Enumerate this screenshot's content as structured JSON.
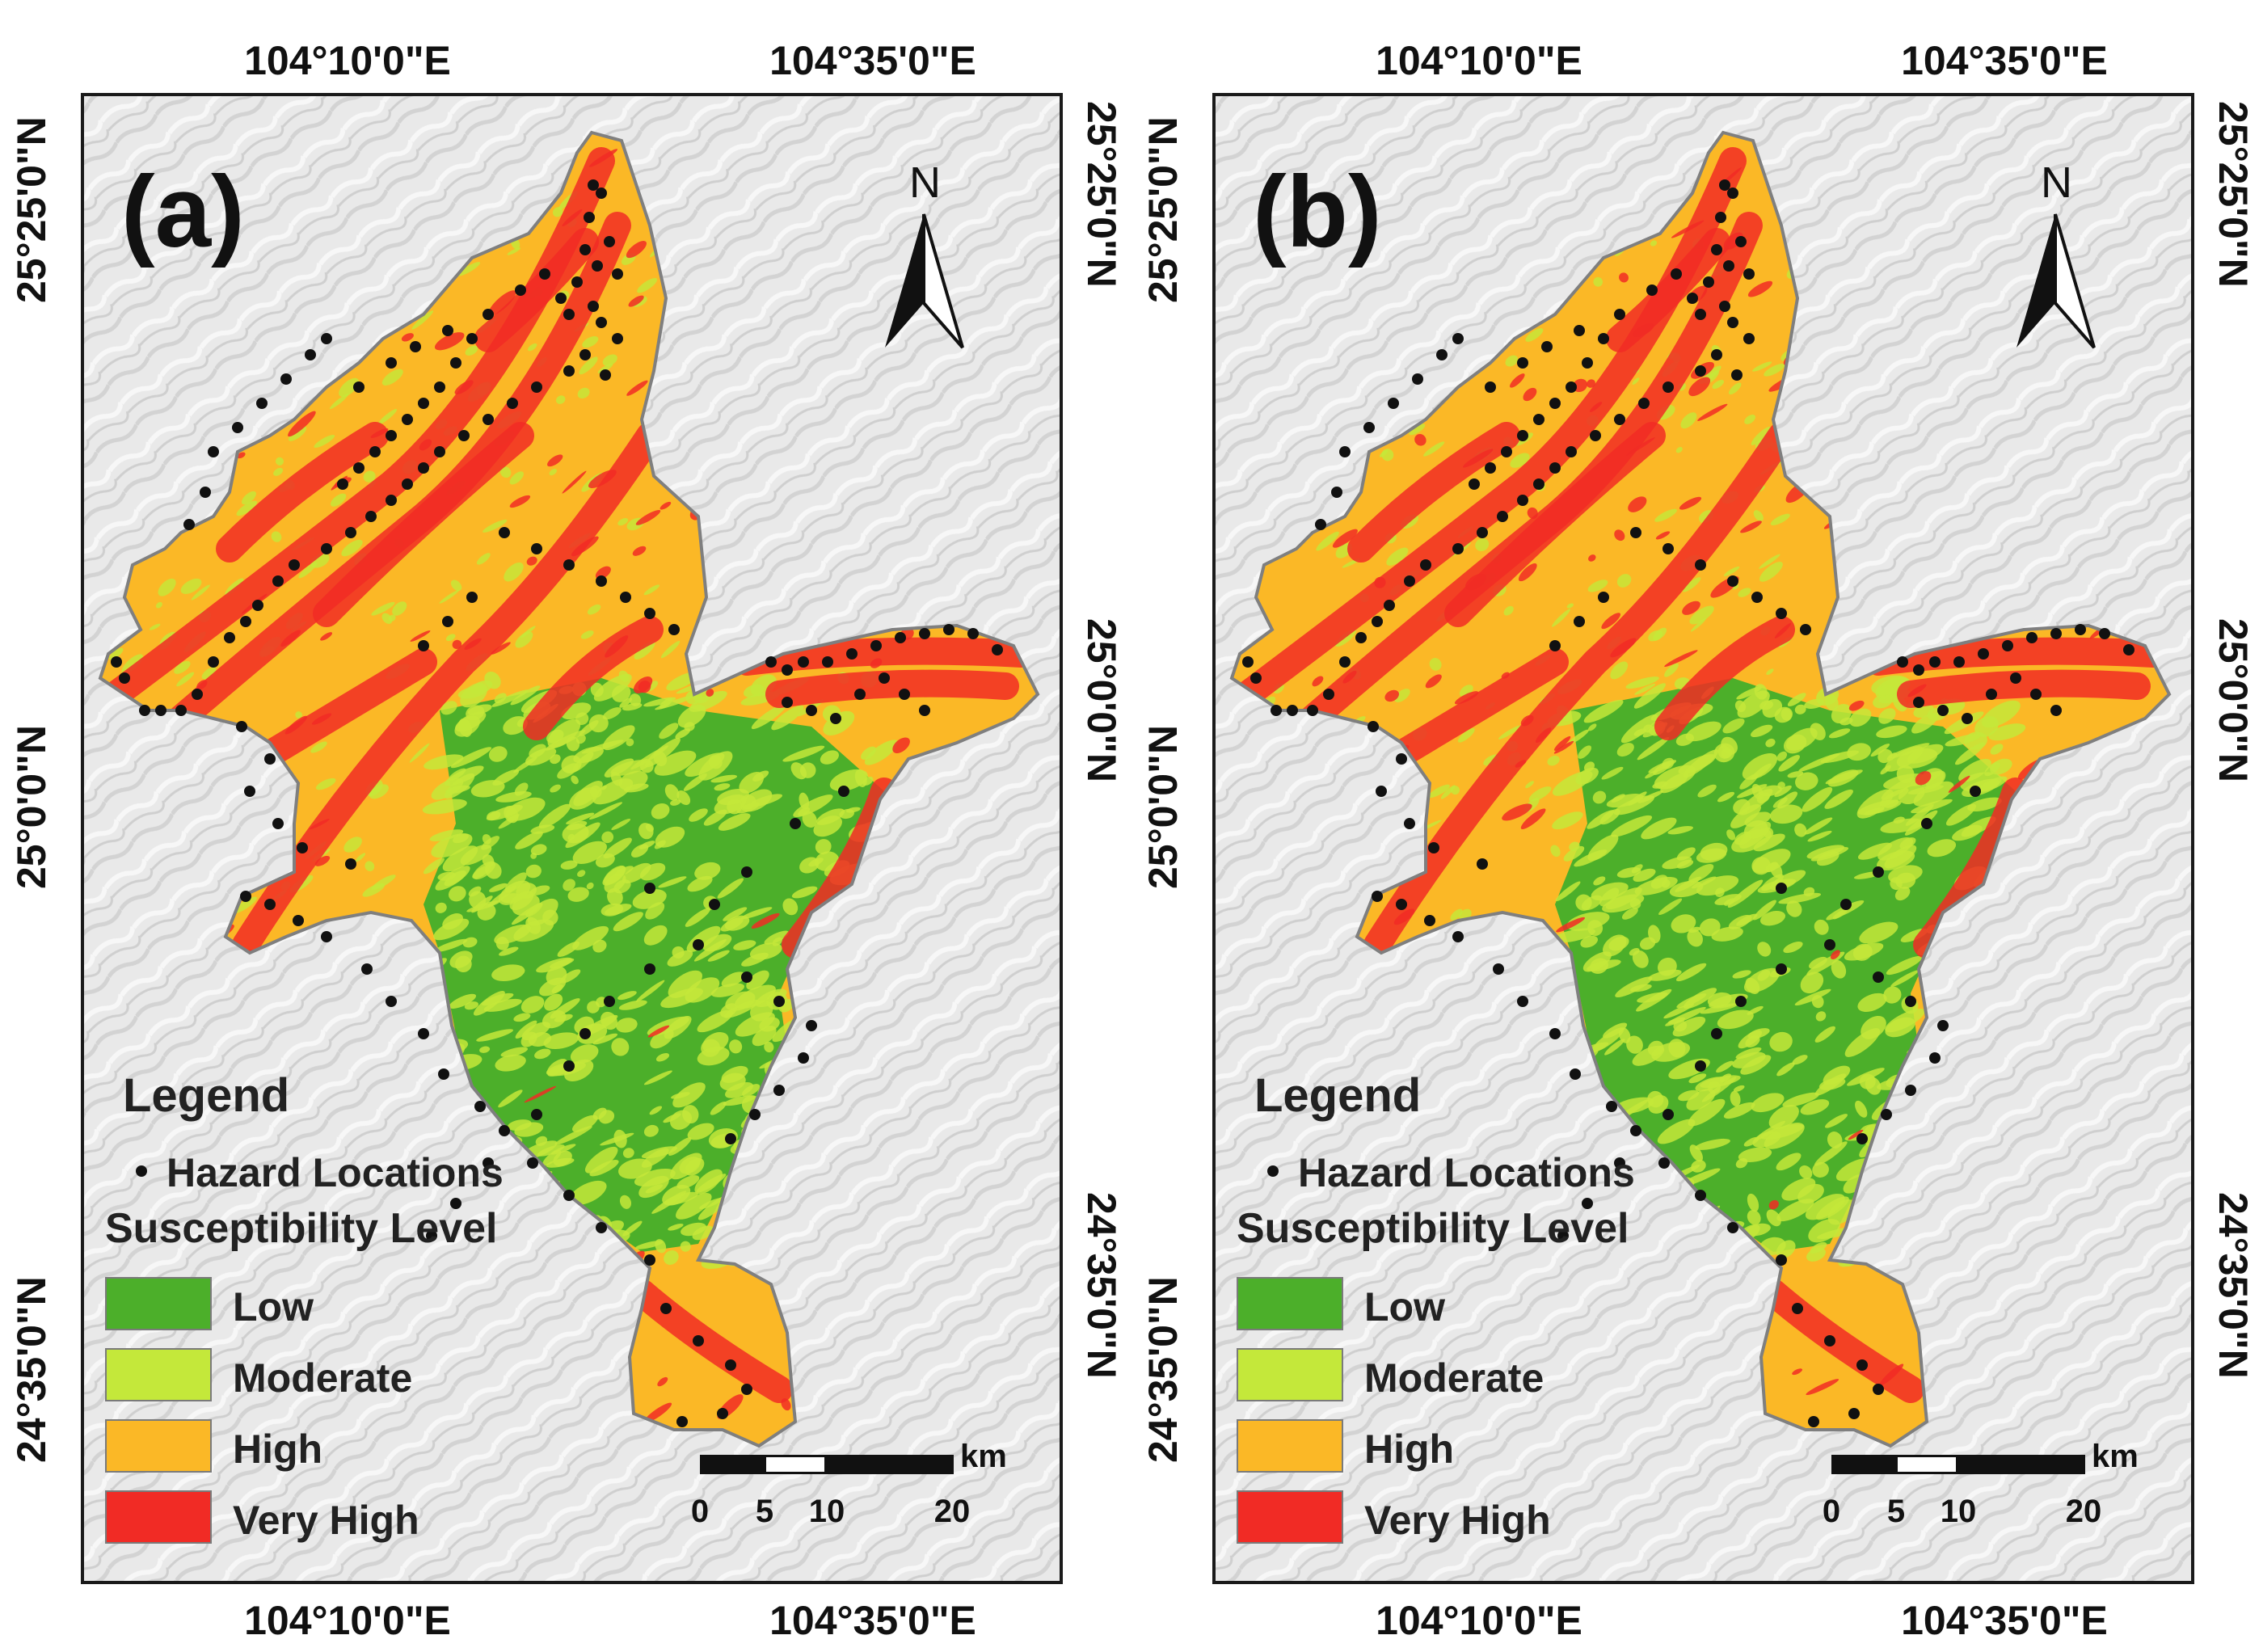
{
  "panels": [
    {
      "label": "(a)"
    },
    {
      "label": "(b)"
    }
  ],
  "axes": {
    "top_lon": [
      "104°10'0\"E",
      "104°35'0\"E"
    ],
    "bottom_lon": [
      "104°10'0\"E",
      "104°35'0\"E"
    ],
    "left_lat": [
      "25°25'0\"N",
      "25°0'0\"N",
      "24°35'0\"N"
    ],
    "right_lat": [
      "25°25'0\"N",
      "25°0'0\"N",
      "24°35'0\"N"
    ]
  },
  "north_arrow": {
    "label": "N",
    "icon": "north-arrow-icon"
  },
  "legend": {
    "title": "Legend",
    "hazard_label": "Hazard Locations",
    "subtitle": "Susceptibility Level",
    "classes": [
      {
        "label": "Low",
        "color": "#4caf2a"
      },
      {
        "label": "Moderate",
        "color": "#c4e83a"
      },
      {
        "label": "High",
        "color": "#fbb826"
      },
      {
        "label": "Very High",
        "color": "#f12b25"
      }
    ]
  },
  "scalebar": {
    "unit": "km",
    "ticks": [
      "0",
      "5",
      "10",
      "20"
    ]
  },
  "colors": {
    "low": "#4caf2a",
    "moderate": "#c4e83a",
    "high": "#fbb826",
    "very_high": "#f12b25",
    "hazard": "#111111",
    "hillshade": "#e9e9e9"
  }
}
